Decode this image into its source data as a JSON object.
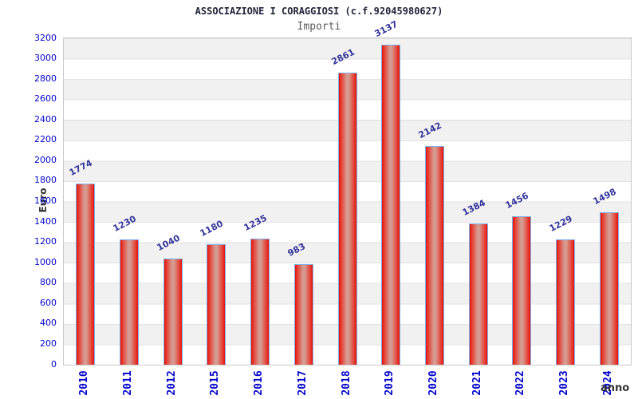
{
  "chart_data": {
    "type": "bar",
    "title": "ASSOCIAZIONE I CORAGGIOSI (c.f.92045980627)",
    "subtitle": "Importi",
    "xlabel": "anno",
    "ylabel": "Euro",
    "categories": [
      "2010",
      "2011",
      "2012",
      "2015",
      "2016",
      "2017",
      "2018",
      "2019",
      "2020",
      "2021",
      "2022",
      "2023",
      "2024"
    ],
    "values": [
      1774,
      1230,
      1040,
      1180,
      1235,
      983,
      2861,
      3137,
      2142,
      1384,
      1456,
      1229,
      1498
    ],
    "ylim": [
      0,
      3200
    ],
    "ytick_step": 200,
    "grid": "horizontal-bands-alternating",
    "legend": "none",
    "colors": {
      "axis_tick_text": "#0000cc",
      "value_label_text": "#33339b",
      "bar_edge": "#e3140c",
      "bar_mid": "#e6463a",
      "bar_center": "#d59a90",
      "bar_border": "#7fb0e8",
      "band_gray": "#f1f1f1",
      "gridline": "#e2e2e2",
      "frame": "#c8c8c8",
      "title_text": "#23233a",
      "subtitle_text": "#5a5a5a",
      "axis_title_text": "#333333"
    }
  }
}
